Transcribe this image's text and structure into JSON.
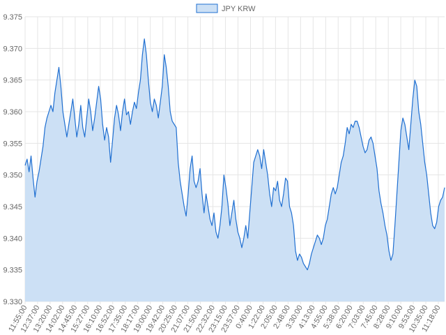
{
  "chart_data": {
    "type": "area",
    "title": "",
    "xlabel": "",
    "ylabel": "",
    "legend": {
      "placement": "top-center",
      "entries": [
        "JPY KRW"
      ]
    },
    "grid": true,
    "ylim": [
      9.33,
      9.375
    ],
    "y_ticks": [
      "9.330",
      "9.335",
      "9.340",
      "9.345",
      "9.350",
      "9.355",
      "9.360",
      "9.365",
      "9.370",
      "9.375"
    ],
    "x_ticks": [
      "11:55:00",
      "12:37:00",
      "13:20:00",
      "14:02:00",
      "14:45:00",
      "15:27:00",
      "16:10:00",
      "16:52:00",
      "17:35:00",
      "18:17:00",
      "19:00:00",
      "19:42:00",
      "20:25:00",
      "21:07:00",
      "21:50:00",
      "22:32:00",
      "23:15:00",
      "23:57:00",
      "0:40:00",
      "1:22:00",
      "2:05:00",
      "2:48:00",
      "3:30:00",
      "4:13:00",
      "4:55:00",
      "5:38:00",
      "6:20:00",
      "7:03:00",
      "7:45:00",
      "8:28:00",
      "9:10:00",
      "9:53:00",
      "10:35:00",
      "11:18:00"
    ],
    "series": [
      {
        "name": "JPY KRW",
        "color": "#1f6fd1",
        "fill": "#cce0f5",
        "values": [
          9.3515,
          9.3525,
          9.3505,
          9.353,
          9.3495,
          9.3465,
          9.349,
          9.3505,
          9.3525,
          9.3545,
          9.3575,
          9.359,
          9.36,
          9.361,
          9.36,
          9.363,
          9.365,
          9.367,
          9.364,
          9.36,
          9.358,
          9.356,
          9.358,
          9.36,
          9.362,
          9.359,
          9.356,
          9.358,
          9.361,
          9.3575,
          9.356,
          9.359,
          9.362,
          9.36,
          9.357,
          9.359,
          9.3615,
          9.364,
          9.362,
          9.358,
          9.3555,
          9.3575,
          9.356,
          9.352,
          9.3555,
          9.359,
          9.361,
          9.3595,
          9.357,
          9.36,
          9.362,
          9.3595,
          9.36,
          9.358,
          9.36,
          9.3615,
          9.3605,
          9.363,
          9.365,
          9.369,
          9.3715,
          9.369,
          9.365,
          9.3615,
          9.36,
          9.362,
          9.361,
          9.359,
          9.3615,
          9.364,
          9.369,
          9.367,
          9.364,
          9.36,
          9.3585,
          9.358,
          9.3575,
          9.352,
          9.349,
          9.347,
          9.345,
          9.3435,
          9.347,
          9.351,
          9.353,
          9.349,
          9.348,
          9.349,
          9.351,
          9.347,
          9.344,
          9.347,
          9.345,
          9.343,
          9.342,
          9.344,
          9.341,
          9.34,
          9.342,
          9.345,
          9.35,
          9.348,
          9.3455,
          9.342,
          9.344,
          9.346,
          9.343,
          9.341,
          9.34,
          9.3385,
          9.34,
          9.342,
          9.34,
          9.344,
          9.348,
          9.352,
          9.353,
          9.354,
          9.353,
          9.351,
          9.354,
          9.352,
          9.35,
          9.347,
          9.345,
          9.348,
          9.3475,
          9.349,
          9.346,
          9.345,
          9.347,
          9.3495,
          9.349,
          9.345,
          9.344,
          9.342,
          9.338,
          9.3365,
          9.3375,
          9.337,
          9.336,
          9.3355,
          9.335,
          9.336,
          9.3375,
          9.3385,
          9.3395,
          9.3405,
          9.34,
          9.339,
          9.34,
          9.342,
          9.343,
          9.345,
          9.347,
          9.348,
          9.347,
          9.348,
          9.35,
          9.352,
          9.353,
          9.355,
          9.3575,
          9.3565,
          9.358,
          9.3575,
          9.3585,
          9.3585,
          9.3575,
          9.356,
          9.3545,
          9.3535,
          9.354,
          9.3555,
          9.356,
          9.355,
          9.353,
          9.351,
          9.3475,
          9.3455,
          9.344,
          9.342,
          9.3405,
          9.338,
          9.3365,
          9.3375,
          9.342,
          9.347,
          9.352,
          9.357,
          9.359,
          9.358,
          9.356,
          9.354,
          9.358,
          9.362,
          9.365,
          9.364,
          9.36,
          9.358,
          9.355,
          9.352,
          9.35,
          9.347,
          9.344,
          9.342,
          9.3415,
          9.3425,
          9.345,
          9.346,
          9.3465,
          9.348
        ]
      }
    ]
  }
}
